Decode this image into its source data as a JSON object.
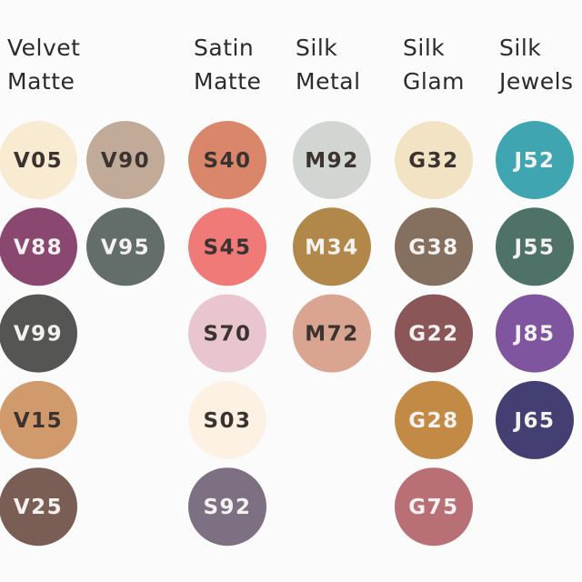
{
  "groups": [
    {
      "title": [
        "Velvet",
        "Matte"
      ],
      "columns": [
        [
          {
            "code": "V05",
            "color": "#f8ebd1"
          },
          {
            "code": "V88",
            "color": "#8a4870"
          },
          {
            "code": "V99",
            "color": "#555554"
          },
          {
            "code": "V15",
            "color": "#d19a6c"
          },
          {
            "code": "V25",
            "color": "#7a5e55"
          }
        ],
        [
          {
            "code": "V90",
            "color": "#c1ab98"
          },
          {
            "code": "V95",
            "color": "#636d69"
          }
        ]
      ]
    },
    {
      "title": [
        "Satin",
        "Matte"
      ],
      "columns": [
        [
          {
            "code": "S40",
            "color": "#d9866a"
          },
          {
            "code": "S45",
            "color": "#f07a78"
          },
          {
            "code": "S70",
            "color": "#e9c6cf"
          },
          {
            "code": "S03",
            "color": "#fcf1e3"
          },
          {
            "code": "S92",
            "color": "#7d7083"
          }
        ]
      ]
    },
    {
      "title": [
        "Silk",
        "Metal"
      ],
      "columns": [
        [
          {
            "code": "M92",
            "color": "#d2d6d3"
          },
          {
            "code": "M34",
            "color": "#b2874a"
          },
          {
            "code": "M72",
            "color": "#d9a590"
          }
        ]
      ]
    },
    {
      "title": [
        "Silk",
        "Glam"
      ],
      "columns": [
        [
          {
            "code": "G32",
            "color": "#f3e3c5"
          },
          {
            "code": "G38",
            "color": "#85705f"
          },
          {
            "code": "G22",
            "color": "#8a5657"
          },
          {
            "code": "G28",
            "color": "#c38a45"
          },
          {
            "code": "G75",
            "color": "#b86f75"
          }
        ]
      ]
    },
    {
      "title": [
        "Silk",
        "Jewels"
      ],
      "columns": [
        [
          {
            "code": "J52",
            "color": "#3fa5b0"
          },
          {
            "code": "J55",
            "color": "#4f7268"
          },
          {
            "code": "J85",
            "color": "#7f55a0"
          },
          {
            "code": "J65",
            "color": "#433f72"
          }
        ]
      ]
    }
  ]
}
